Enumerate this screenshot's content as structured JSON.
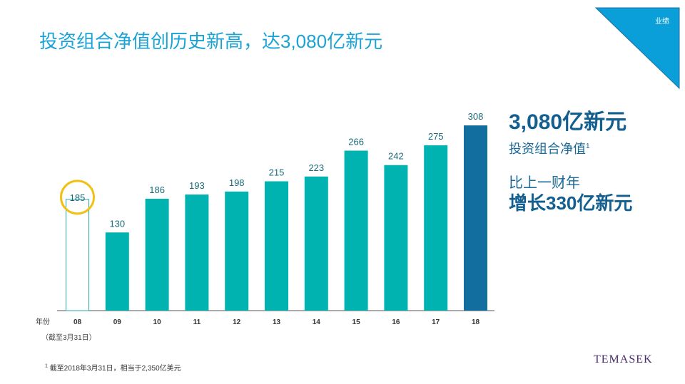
{
  "title": "投资组合净值创历史新高，达3,080亿新元",
  "section_tag": "业绩",
  "highlight": {
    "value": "3,080亿新元",
    "label": "投资组合净值",
    "label_sup": "1",
    "compare_line": "比上一财年",
    "growth": "增长330亿新元"
  },
  "axis_note": "（截至3月31日）",
  "footnote": {
    "marker": "1",
    "text": "截至2018年3月31日，相当于2,350亿美元"
  },
  "logo": "TEMASEK",
  "colors": {
    "bar": "#00b2b0",
    "latest_bar": "#126e9f",
    "outline_bar": "#2aa5b3",
    "highlight_circle": "#f2c012",
    "label_text": "#1a6a7a"
  },
  "chart_data": {
    "type": "bar",
    "title": "",
    "xlabel": "年份",
    "ylabel": "",
    "categories": [
      "08",
      "09",
      "10",
      "11",
      "12",
      "13",
      "14",
      "15",
      "16",
      "17",
      "18"
    ],
    "values": [
      185,
      130,
      186,
      193,
      198,
      215,
      223,
      266,
      242,
      275,
      308
    ],
    "ylim": [
      0,
      308
    ],
    "grid": false,
    "legend": "none",
    "special": {
      "outlined_category": "08",
      "circled_category": "08",
      "highlighted_category": "18"
    }
  }
}
